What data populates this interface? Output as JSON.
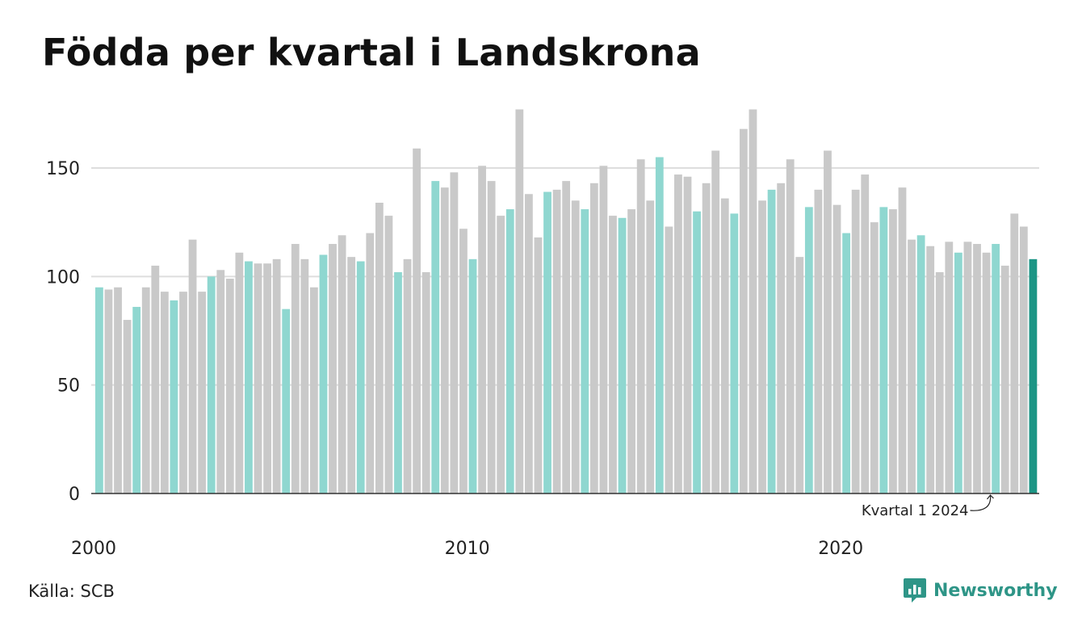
{
  "chart_data": {
    "type": "bar",
    "title": "Födda per kvartal i Landskrona",
    "ylim": [
      0,
      180
    ],
    "y_ticks": [
      0,
      50,
      100,
      150
    ],
    "x_tick_labels": [
      "2000",
      "2010",
      "2020"
    ],
    "grid": true,
    "first_quarter_color": "#8fd7d0",
    "other_quarter_color": "#c9c9c9",
    "latest_color": "#1c9585",
    "annotation": "Kvartal 1 2024",
    "series": [
      {
        "start_year": 2000,
        "values": [
          95,
          94,
          95,
          80,
          86,
          95,
          105,
          93,
          89,
          93,
          117,
          93,
          100,
          103,
          99,
          111,
          107,
          106,
          106,
          108,
          85,
          115,
          108,
          95,
          110,
          115,
          119,
          109,
          107,
          120,
          134,
          128,
          102,
          108,
          159,
          102,
          144,
          141,
          148,
          122,
          108,
          151,
          144,
          128,
          131,
          177,
          138,
          118,
          139,
          140,
          144,
          135,
          131,
          143,
          151,
          128,
          127,
          131,
          154,
          135,
          155,
          123,
          147,
          146,
          130,
          143,
          158,
          136,
          129,
          168,
          177,
          135,
          140,
          143,
          154,
          109,
          132,
          140,
          158,
          133,
          120,
          140,
          147,
          125,
          132,
          131,
          141,
          117,
          119,
          114,
          102,
          116,
          111,
          116,
          115,
          111,
          115,
          105,
          129,
          123,
          108
        ]
      }
    ]
  },
  "footer": {
    "source": "Källa: SCB",
    "brand": "Newsworthy"
  }
}
